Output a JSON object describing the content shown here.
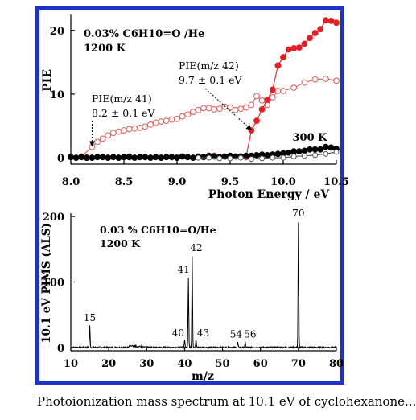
{
  "colors": {
    "frame": "#1f31c8",
    "red": "#e81e25",
    "black": "#000000",
    "open_red": "#e35a5a"
  },
  "caption": "Photoionization mass spectrum at 10.1 eV of cyclohexanone...",
  "chart_data": [
    {
      "type": "scatter",
      "ylabel": "PIE",
      "xlabel": "Photon Energy / eV",
      "xlim": [
        8.0,
        10.5
      ],
      "ylim": [
        -1,
        22.5
      ],
      "xticks": [
        "8.0",
        "8.5",
        "9.0",
        "9.5",
        "10.0",
        "10.5"
      ],
      "yticks": [
        "0",
        "10",
        "20"
      ],
      "annotations": {
        "sample": "0.03% C6H10=O /He",
        "temp": "1200 K",
        "temp_300": "300 K",
        "pie41_label": "PIE(m/z 41)",
        "pie41_value": "8.2 ± 0.1 eV",
        "pie41_onset": 8.2,
        "pie42_label": "PIE(m/z 42)",
        "pie42_value": "9.7 ± 0.1 eV",
        "pie42_onset": 9.7
      },
      "series": [
        {
          "style": "open-red-line",
          "x": [
            8.0,
            8.1,
            8.2,
            8.25,
            8.3,
            8.35,
            8.4,
            8.45,
            8.5,
            8.55,
            8.6,
            8.65,
            8.7,
            8.75,
            8.8,
            8.85,
            8.9,
            8.95,
            9.0,
            9.05,
            9.1,
            9.15,
            9.2,
            9.25,
            9.3,
            9.35,
            9.4,
            9.45,
            9.5,
            9.55,
            9.6,
            9.65,
            9.7,
            9.75,
            9.8,
            9.85,
            9.9,
            9.95,
            10.0,
            10.1,
            10.2,
            10.3,
            10.4,
            10.5
          ],
          "y": [
            0.1,
            0.2,
            1.7,
            2.5,
            3.0,
            3.5,
            3.9,
            4.1,
            4.3,
            4.5,
            4.6,
            4.7,
            4.9,
            5.2,
            5.5,
            5.7,
            5.8,
            6.0,
            6.1,
            6.5,
            6.8,
            7.2,
            7.5,
            7.8,
            7.8,
            7.6,
            7.7,
            8.0,
            7.9,
            7.5,
            7.7,
            7.9,
            8.3,
            9.7,
            9.0,
            8.3,
            9.5,
            10.5,
            10.5,
            11.0,
            11.8,
            12.3,
            12.4,
            12.1
          ]
        },
        {
          "style": "filled-red-line",
          "x": [
            9.65,
            9.7,
            9.75,
            9.8,
            9.85,
            9.9,
            9.95,
            10.0,
            10.05,
            10.1,
            10.15,
            10.2,
            10.25,
            10.3,
            10.35,
            10.4,
            10.45,
            10.5
          ],
          "y": [
            0.1,
            4.3,
            5.8,
            7.6,
            9.1,
            10.7,
            14.5,
            15.8,
            17.0,
            17.2,
            17.3,
            17.9,
            18.8,
            19.6,
            20.2,
            21.6,
            21.5,
            21.2
          ]
        },
        {
          "style": "filled-red-points",
          "x": [
            8.15,
            8.55,
            9.35
          ],
          "y": [
            0.0,
            0.2,
            0.3
          ]
        },
        {
          "style": "filled-black-line",
          "x": [
            8.0,
            8.05,
            8.1,
            8.15,
            8.2,
            8.25,
            8.3,
            8.35,
            8.4,
            8.45,
            8.5,
            8.55,
            8.6,
            8.65,
            8.7,
            8.75,
            8.8,
            8.85,
            8.9,
            8.95,
            9.0,
            9.05,
            9.1,
            9.15,
            9.2,
            9.25,
            9.3,
            9.35,
            9.4,
            9.45,
            9.5,
            9.55,
            9.6,
            9.65,
            9.7,
            9.75,
            9.8,
            9.85,
            9.9,
            9.95,
            10.0,
            10.05,
            10.1,
            10.15,
            10.2,
            10.25,
            10.3,
            10.35,
            10.4,
            10.45,
            10.5
          ],
          "y": [
            0.1,
            0.0,
            0.1,
            0.0,
            0.0,
            0.1,
            0.1,
            0.0,
            0.1,
            0.0,
            0.1,
            0.1,
            0.0,
            0.1,
            0.1,
            0.0,
            0.1,
            0.0,
            0.1,
            0.1,
            0.0,
            0.2,
            0.1,
            0.0,
            0.2,
            0.1,
            0.3,
            0.2,
            0.1,
            0.2,
            0.3,
            0.2,
            0.2,
            0.3,
            0.3,
            0.4,
            0.5,
            0.4,
            0.5,
            0.6,
            0.7,
            0.8,
            1.0,
            1.0,
            1.1,
            1.3,
            1.3,
            1.3,
            1.7,
            1.6,
            1.4
          ]
        },
        {
          "style": "open-black-line",
          "x": [
            9.2,
            9.3,
            9.4,
            9.5,
            9.6,
            9.7,
            9.8,
            9.9,
            10.0,
            10.1,
            10.2,
            10.3,
            10.4,
            10.5
          ],
          "y": [
            0.0,
            0.0,
            -0.1,
            -0.1,
            0.0,
            -0.2,
            -0.1,
            0.0,
            0.0,
            0.2,
            0.3,
            0.4,
            0.6,
            0.9
          ]
        }
      ]
    },
    {
      "type": "line",
      "ylabel": "10.1 eV PIMS (ALS)",
      "xlabel": "m/z",
      "xlim": [
        10,
        80
      ],
      "ylim": [
        -5,
        205
      ],
      "xticks": [
        "10",
        "20",
        "30",
        "40",
        "50",
        "60",
        "70",
        "80"
      ],
      "yticks": [
        "0",
        "100",
        "200"
      ],
      "annotations": {
        "sample": "0.03 % C6H10=O/He",
        "temp": "1200 K"
      },
      "peaks": [
        {
          "mz": 15,
          "intensity": 33,
          "label": "15"
        },
        {
          "mz": 40,
          "intensity": 12,
          "label": "40"
        },
        {
          "mz": 41,
          "intensity": 107,
          "label": "41"
        },
        {
          "mz": 42,
          "intensity": 140,
          "label": "42"
        },
        {
          "mz": 43,
          "intensity": 12,
          "label": "43"
        },
        {
          "mz": 54,
          "intensity": 8,
          "label": "54"
        },
        {
          "mz": 56,
          "intensity": 8,
          "label": "56"
        },
        {
          "mz": 70,
          "intensity": 190,
          "label": "70"
        }
      ]
    }
  ]
}
